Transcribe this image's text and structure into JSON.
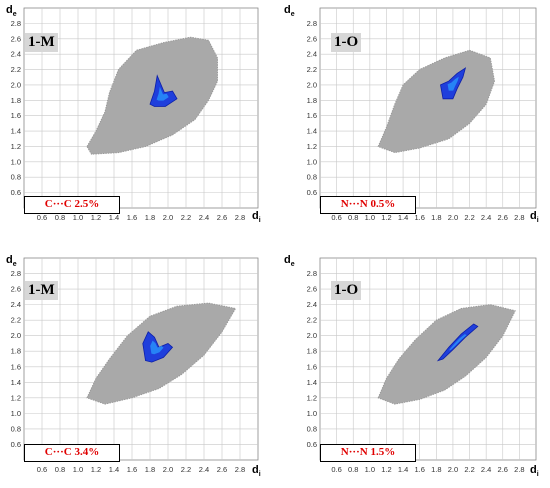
{
  "chart_data": [
    {
      "type": "scatter",
      "panel_label": "1-M",
      "contact_label": "C···C   2.5%",
      "xlabel": "d",
      "xlabel_sub": "i",
      "ylabel": "d",
      "ylabel_sub": "e",
      "x_ticks": [
        "0.6",
        "0.8",
        "1.0",
        "1.2",
        "1.4",
        "1.6",
        "1.8",
        "2.0",
        "2.2",
        "2.4",
        "2.6",
        "2.8"
      ],
      "y_ticks": [
        "0.6",
        "0.8",
        "1.0",
        "1.2",
        "1.4",
        "1.6",
        "1.8",
        "2.0",
        "2.2",
        "2.4",
        "2.6",
        "2.8"
      ],
      "xlim": [
        0.4,
        3.0
      ],
      "ylim": [
        0.4,
        3.0
      ],
      "grid": true,
      "background_region": [
        [
          1.1,
          1.2
        ],
        [
          1.2,
          1.4
        ],
        [
          1.3,
          1.65
        ],
        [
          1.35,
          1.9
        ],
        [
          1.45,
          2.2
        ],
        [
          1.65,
          2.45
        ],
        [
          1.95,
          2.55
        ],
        [
          2.25,
          2.62
        ],
        [
          2.45,
          2.58
        ],
        [
          2.55,
          2.35
        ],
        [
          2.55,
          2.05
        ],
        [
          2.45,
          1.8
        ],
        [
          2.3,
          1.55
        ],
        [
          2.05,
          1.35
        ],
        [
          1.75,
          1.2
        ],
        [
          1.45,
          1.12
        ],
        [
          1.15,
          1.1
        ]
      ],
      "highlight_region": [
        [
          1.8,
          1.75
        ],
        [
          1.85,
          1.92
        ],
        [
          1.88,
          2.12
        ],
        [
          1.96,
          1.9
        ],
        [
          2.05,
          1.92
        ],
        [
          2.1,
          1.82
        ],
        [
          1.97,
          1.72
        ],
        [
          1.85,
          1.72
        ]
      ],
      "colors": {
        "background": "#a9a9a9",
        "highlight": "#1f3fdc",
        "highlight_core": "#2a9bff",
        "label": "#e00000"
      }
    },
    {
      "type": "scatter",
      "panel_label": "1-O",
      "contact_label": "N···N   0.5%",
      "xlabel": "d",
      "xlabel_sub": "i",
      "ylabel": "d",
      "ylabel_sub": "e",
      "x_ticks": [
        "0.6",
        "0.8",
        "1.0",
        "1.2",
        "1.4",
        "1.6",
        "1.8",
        "2.0",
        "2.2",
        "2.4",
        "2.6",
        "2.8"
      ],
      "y_ticks": [
        "0.6",
        "0.8",
        "1.0",
        "1.2",
        "1.4",
        "1.6",
        "1.8",
        "2.0",
        "2.2",
        "2.4",
        "2.6",
        "2.8"
      ],
      "xlim": [
        0.4,
        3.0
      ],
      "ylim": [
        0.4,
        3.0
      ],
      "grid": true,
      "background_region": [
        [
          1.1,
          1.2
        ],
        [
          1.2,
          1.45
        ],
        [
          1.3,
          1.75
        ],
        [
          1.4,
          2.0
        ],
        [
          1.6,
          2.2
        ],
        [
          1.9,
          2.35
        ],
        [
          2.2,
          2.45
        ],
        [
          2.45,
          2.35
        ],
        [
          2.5,
          2.05
        ],
        [
          2.4,
          1.75
        ],
        [
          2.2,
          1.5
        ],
        [
          1.95,
          1.3
        ],
        [
          1.6,
          1.18
        ],
        [
          1.3,
          1.12
        ]
      ],
      "highlight_region": [
        [
          1.88,
          1.82
        ],
        [
          1.85,
          2.0
        ],
        [
          1.95,
          2.05
        ],
        [
          2.05,
          2.15
        ],
        [
          2.15,
          2.22
        ],
        [
          2.12,
          2.1
        ],
        [
          2.05,
          1.95
        ],
        [
          2.0,
          1.82
        ]
      ],
      "colors": {
        "background": "#a9a9a9",
        "highlight": "#1f3fdc",
        "highlight_core": "#2a9bff",
        "label": "#e00000"
      }
    },
    {
      "type": "scatter",
      "panel_label": "1-M",
      "contact_label": "C···C   3.4%",
      "xlabel": "d",
      "xlabel_sub": "i",
      "ylabel": "d",
      "ylabel_sub": "e",
      "x_ticks": [
        "0.6",
        "0.8",
        "1.0",
        "1.2",
        "1.4",
        "1.6",
        "1.8",
        "2.0",
        "2.2",
        "2.4",
        "2.6",
        "2.8"
      ],
      "y_ticks": [
        "0.6",
        "0.8",
        "1.0",
        "1.2",
        "1.4",
        "1.6",
        "1.8",
        "2.0",
        "2.2",
        "2.4",
        "2.6",
        "2.8"
      ],
      "xlim": [
        0.4,
        3.0
      ],
      "ylim": [
        0.4,
        3.0
      ],
      "grid": true,
      "background_region": [
        [
          1.1,
          1.2
        ],
        [
          1.2,
          1.45
        ],
        [
          1.35,
          1.7
        ],
        [
          1.55,
          2.0
        ],
        [
          1.8,
          2.25
        ],
        [
          2.1,
          2.38
        ],
        [
          2.45,
          2.42
        ],
        [
          2.75,
          2.35
        ],
        [
          2.6,
          2.05
        ],
        [
          2.4,
          1.75
        ],
        [
          2.15,
          1.5
        ],
        [
          1.9,
          1.32
        ],
        [
          1.6,
          1.2
        ],
        [
          1.3,
          1.12
        ]
      ],
      "highlight_region": [
        [
          1.75,
          1.68
        ],
        [
          1.72,
          1.9
        ],
        [
          1.78,
          2.05
        ],
        [
          1.85,
          1.98
        ],
        [
          1.9,
          1.85
        ],
        [
          2.0,
          1.9
        ],
        [
          2.05,
          1.85
        ],
        [
          1.95,
          1.72
        ],
        [
          1.82,
          1.66
        ]
      ],
      "colors": {
        "background": "#a9a9a9",
        "highlight": "#1f3fdc",
        "highlight_core": "#2a9bff",
        "label": "#e00000"
      }
    },
    {
      "type": "scatter",
      "panel_label": "1-O",
      "contact_label": "N···N   1.5%",
      "xlabel": "d",
      "xlabel_sub": "i",
      "ylabel": "d",
      "ylabel_sub": "e",
      "x_ticks": [
        "0.6",
        "0.8",
        "1.0",
        "1.2",
        "1.4",
        "1.6",
        "1.8",
        "2.0",
        "2.2",
        "2.4",
        "2.6",
        "2.8"
      ],
      "y_ticks": [
        "0.6",
        "0.8",
        "1.0",
        "1.2",
        "1.4",
        "1.6",
        "1.8",
        "2.0",
        "2.2",
        "2.4",
        "2.6",
        "2.8"
      ],
      "xlim": [
        0.4,
        3.0
      ],
      "ylim": [
        0.4,
        3.0
      ],
      "grid": true,
      "background_region": [
        [
          1.1,
          1.2
        ],
        [
          1.2,
          1.45
        ],
        [
          1.35,
          1.7
        ],
        [
          1.55,
          1.95
        ],
        [
          1.8,
          2.2
        ],
        [
          2.1,
          2.35
        ],
        [
          2.45,
          2.4
        ],
        [
          2.75,
          2.32
        ],
        [
          2.6,
          2.0
        ],
        [
          2.4,
          1.72
        ],
        [
          2.15,
          1.48
        ],
        [
          1.9,
          1.3
        ],
        [
          1.6,
          1.18
        ],
        [
          1.3,
          1.12
        ]
      ],
      "highlight_region": [
        [
          1.82,
          1.68
        ],
        [
          1.95,
          1.85
        ],
        [
          2.1,
          2.02
        ],
        [
          2.25,
          2.15
        ],
        [
          2.3,
          2.12
        ],
        [
          2.15,
          1.98
        ],
        [
          2.0,
          1.82
        ],
        [
          1.88,
          1.7
        ]
      ],
      "colors": {
        "background": "#a9a9a9",
        "highlight": "#1f3fdc",
        "highlight_core": "#2a9bff",
        "label": "#e00000"
      }
    }
  ]
}
